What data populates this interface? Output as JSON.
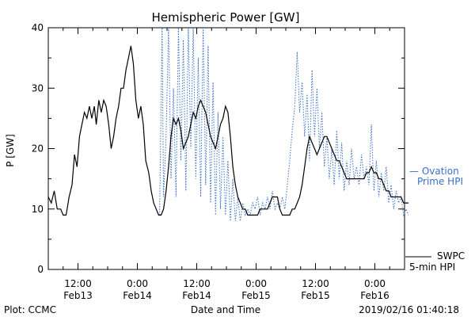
{
  "chart_data": {
    "type": "line",
    "title": "Hemispheric Power [GW]",
    "ylabel": "P [GW]",
    "xlabel": "Date and Time",
    "ylim": [
      0,
      40
    ],
    "xlim_hours": [
      -18,
      54
    ],
    "yticks": [
      0,
      10,
      20,
      30,
      40
    ],
    "xticks": [
      {
        "h": 12,
        "time": "12:00",
        "date": "Feb13"
      },
      {
        "h": 24,
        "time": "0:00",
        "date": "Feb14"
      },
      {
        "h": 36,
        "time": "12:00",
        "date": "Feb14"
      },
      {
        "h": 48,
        "time": "0:00",
        "date": "Feb15"
      },
      {
        "h": 60,
        "time": "12:00",
        "date": "Feb15"
      },
      {
        "h": 72,
        "time": "0:00",
        "date": "Feb16"
      }
    ],
    "legend": [
      {
        "line1": "— Ovation",
        "line2": "Prime HPI",
        "color": "#3a6fc8",
        "style": "dotted"
      },
      {
        "line1": "SWPC",
        "line2": "5-min HPI",
        "color": "#000000",
        "style": "solid"
      }
    ],
    "series": [
      {
        "name": "SWPC 5-min HPI",
        "color": "#000000",
        "points": [
          [
            0,
            12
          ],
          [
            0.6,
            11
          ],
          [
            1.2,
            13
          ],
          [
            1.8,
            10
          ],
          [
            2.5,
            10
          ],
          [
            3,
            9
          ],
          [
            3.6,
            9
          ],
          [
            4.2,
            12
          ],
          [
            4.8,
            14
          ],
          [
            5.3,
            19
          ],
          [
            5.8,
            17
          ],
          [
            6.3,
            22
          ],
          [
            6.8,
            24
          ],
          [
            7.3,
            26
          ],
          [
            7.8,
            25
          ],
          [
            8.3,
            27
          ],
          [
            8.8,
            25
          ],
          [
            9.3,
            27
          ],
          [
            9.7,
            24
          ],
          [
            10.2,
            28
          ],
          [
            10.7,
            26
          ],
          [
            11.2,
            28
          ],
          [
            11.7,
            27
          ],
          [
            12.2,
            24
          ],
          [
            12.7,
            20
          ],
          [
            13.2,
            22
          ],
          [
            13.7,
            25
          ],
          [
            14.2,
            27
          ],
          [
            14.7,
            30
          ],
          [
            15.2,
            30
          ],
          [
            15.7,
            33
          ],
          [
            16.2,
            35
          ],
          [
            16.7,
            37
          ],
          [
            17.2,
            34
          ],
          [
            17.7,
            28
          ],
          [
            18.2,
            25
          ],
          [
            18.7,
            27
          ],
          [
            19.2,
            24
          ],
          [
            19.7,
            18
          ],
          [
            20.3,
            16
          ],
          [
            20.8,
            13
          ],
          [
            21.3,
            11
          ],
          [
            21.8,
            10
          ],
          [
            22.3,
            9
          ],
          [
            22.8,
            9
          ],
          [
            23.3,
            10
          ],
          [
            23.8,
            13
          ],
          [
            24.3,
            17
          ],
          [
            24.8,
            22
          ],
          [
            25.3,
            25
          ],
          [
            25.8,
            24
          ],
          [
            26.3,
            25
          ],
          [
            26.8,
            23
          ],
          [
            27.3,
            20
          ],
          [
            27.8,
            21
          ],
          [
            28.3,
            22
          ],
          [
            28.8,
            24
          ],
          [
            29.3,
            26
          ],
          [
            29.8,
            25
          ],
          [
            30.3,
            27
          ],
          [
            30.8,
            28
          ],
          [
            31.3,
            27
          ],
          [
            31.8,
            26
          ],
          [
            32.3,
            24
          ],
          [
            32.8,
            22
          ],
          [
            33.3,
            21
          ],
          [
            33.8,
            20
          ],
          [
            34.3,
            22
          ],
          [
            34.8,
            24
          ],
          [
            35.3,
            25
          ],
          [
            35.8,
            27
          ],
          [
            36.3,
            26
          ],
          [
            36.8,
            22
          ],
          [
            37.3,
            17
          ],
          [
            37.8,
            14
          ],
          [
            38.3,
            12
          ],
          [
            38.8,
            11
          ],
          [
            39.3,
            10
          ],
          [
            39.8,
            10
          ],
          [
            40.3,
            9
          ],
          [
            40.8,
            9
          ],
          [
            41.3,
            9
          ],
          [
            41.8,
            9
          ],
          [
            42.3,
            9
          ],
          [
            42.8,
            10
          ],
          [
            43.3,
            10
          ],
          [
            43.8,
            10
          ],
          [
            44.3,
            10
          ],
          [
            44.8,
            11
          ],
          [
            45.3,
            12
          ],
          [
            45.8,
            12
          ],
          [
            46.3,
            12
          ],
          [
            46.8,
            10
          ],
          [
            47.3,
            9
          ],
          [
            47.8,
            9
          ],
          [
            48.3,
            9
          ],
          [
            48.8,
            9
          ],
          [
            49.3,
            10
          ],
          [
            49.8,
            10
          ],
          [
            50.3,
            11
          ],
          [
            50.8,
            12
          ],
          [
            51.3,
            14
          ],
          [
            51.8,
            17
          ],
          [
            52.3,
            20
          ],
          [
            52.8,
            22
          ],
          [
            53.3,
            21
          ],
          [
            53.8,
            20
          ],
          [
            54.3,
            19
          ],
          [
            54.8,
            20
          ],
          [
            55.3,
            21
          ],
          [
            55.8,
            22
          ],
          [
            56.3,
            22
          ],
          [
            56.8,
            21
          ],
          [
            57.3,
            20
          ],
          [
            57.8,
            19
          ],
          [
            58.3,
            18
          ],
          [
            58.8,
            18
          ],
          [
            59.3,
            17
          ],
          [
            59.8,
            16
          ],
          [
            60.3,
            15
          ],
          [
            60.8,
            15
          ],
          [
            61.3,
            15
          ],
          [
            61.8,
            15
          ],
          [
            62.3,
            15
          ],
          [
            62.8,
            15
          ],
          [
            63.3,
            15
          ],
          [
            63.8,
            15
          ],
          [
            64.3,
            16
          ],
          [
            64.8,
            16
          ],
          [
            65.3,
            17
          ],
          [
            65.8,
            16
          ],
          [
            66.3,
            16
          ],
          [
            66.8,
            15
          ],
          [
            67.3,
            15
          ],
          [
            67.8,
            14
          ],
          [
            68.3,
            13
          ],
          [
            68.8,
            13
          ],
          [
            69.3,
            12
          ],
          [
            69.8,
            12
          ],
          [
            70.3,
            12
          ],
          [
            70.8,
            12
          ],
          [
            71.3,
            12
          ],
          [
            71.8,
            11
          ],
          [
            72.3,
            11
          ],
          [
            72.8,
            11
          ]
        ]
      },
      {
        "name": "Ovation Prime HPI",
        "color": "#3a6fc8",
        "points": [
          [
            22.5,
            9
          ],
          [
            23,
            40
          ],
          [
            23.3,
            12
          ],
          [
            23.8,
            22
          ],
          [
            24.3,
            40
          ],
          [
            24.8,
            15
          ],
          [
            25.3,
            30
          ],
          [
            25.8,
            12
          ],
          [
            26.3,
            40
          ],
          [
            26.8,
            18
          ],
          [
            27.3,
            38
          ],
          [
            27.8,
            13
          ],
          [
            28.3,
            40
          ],
          [
            28.8,
            20
          ],
          [
            29.3,
            40
          ],
          [
            29.8,
            15
          ],
          [
            30.3,
            35
          ],
          [
            30.8,
            12
          ],
          [
            31.3,
            40
          ],
          [
            31.8,
            14
          ],
          [
            32.3,
            37
          ],
          [
            32.8,
            11
          ],
          [
            33.3,
            31
          ],
          [
            33.8,
            9
          ],
          [
            34.3,
            26
          ],
          [
            34.8,
            10
          ],
          [
            35.3,
            22
          ],
          [
            35.8,
            9
          ],
          [
            36.3,
            18
          ],
          [
            36.8,
            8
          ],
          [
            37.3,
            15
          ],
          [
            37.8,
            8
          ],
          [
            38.3,
            12
          ],
          [
            38.8,
            8
          ],
          [
            39.3,
            11
          ],
          [
            39.8,
            9
          ],
          [
            40.3,
            10
          ],
          [
            40.8,
            9
          ],
          [
            41.3,
            11
          ],
          [
            41.8,
            10
          ],
          [
            42.3,
            12
          ],
          [
            42.8,
            9
          ],
          [
            43.3,
            11
          ],
          [
            43.8,
            10
          ],
          [
            44.3,
            12
          ],
          [
            44.8,
            10
          ],
          [
            45.3,
            13
          ],
          [
            45.8,
            10
          ],
          [
            46.3,
            11
          ],
          [
            46.8,
            10
          ],
          [
            47.3,
            12
          ],
          [
            47.8,
            10
          ],
          [
            48.3,
            14
          ],
          [
            48.8,
            18
          ],
          [
            49.3,
            23
          ],
          [
            49.8,
            27
          ],
          [
            50.3,
            36
          ],
          [
            50.8,
            26
          ],
          [
            51.3,
            31
          ],
          [
            51.8,
            22
          ],
          [
            52.3,
            29
          ],
          [
            52.8,
            18
          ],
          [
            53.3,
            33
          ],
          [
            53.8,
            22
          ],
          [
            54.3,
            30
          ],
          [
            54.8,
            20
          ],
          [
            55.3,
            26
          ],
          [
            55.8,
            17
          ],
          [
            56.3,
            22
          ],
          [
            56.8,
            15
          ],
          [
            57.3,
            20
          ],
          [
            57.8,
            14
          ],
          [
            58.3,
            23
          ],
          [
            58.8,
            15
          ],
          [
            59.3,
            21
          ],
          [
            59.8,
            13
          ],
          [
            60.3,
            18
          ],
          [
            60.8,
            14
          ],
          [
            61.3,
            20
          ],
          [
            61.8,
            15
          ],
          [
            62.3,
            17
          ],
          [
            62.8,
            14
          ],
          [
            63.3,
            19
          ],
          [
            63.8,
            15
          ],
          [
            64.3,
            17
          ],
          [
            64.8,
            14
          ],
          [
            65.3,
            24
          ],
          [
            65.8,
            13
          ],
          [
            66.3,
            18
          ],
          [
            66.8,
            12
          ],
          [
            67.3,
            16
          ],
          [
            67.8,
            13
          ],
          [
            68.3,
            17
          ],
          [
            68.8,
            11
          ],
          [
            69.3,
            14
          ],
          [
            69.8,
            10
          ],
          [
            70.3,
            13
          ],
          [
            70.8,
            11
          ],
          [
            71.3,
            12
          ],
          [
            71.8,
            9
          ],
          [
            72.3,
            10
          ],
          [
            72.8,
            9
          ]
        ]
      }
    ]
  },
  "footer": {
    "left": "Plot: CCMC",
    "right": "2019/02/16 01:40:18"
  }
}
